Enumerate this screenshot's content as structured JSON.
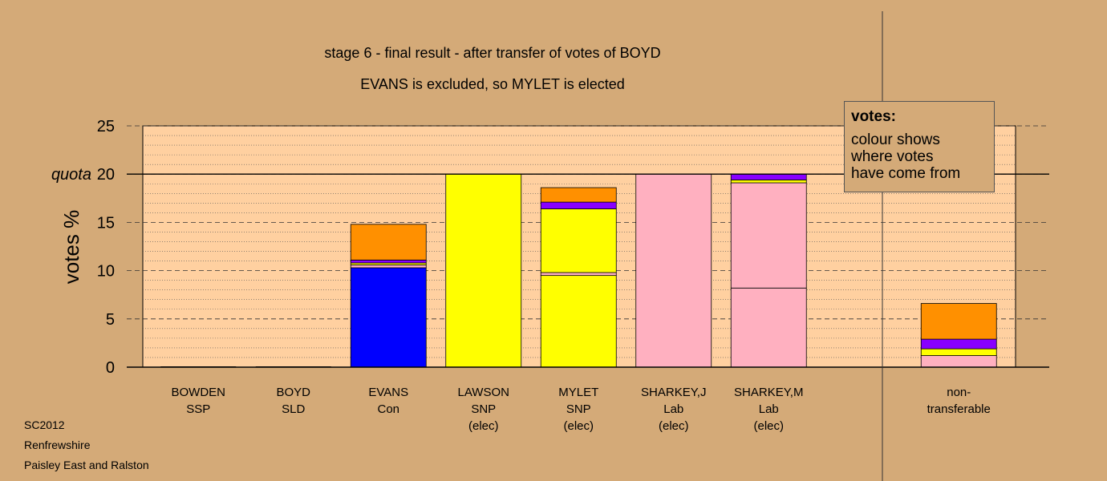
{
  "chart_data": {
    "type": "bar",
    "stacked": true,
    "title": "stage 6 - final result - after transfer of votes of BOYD",
    "subtitle": "EVANS is excluded, so MYLET is elected",
    "ylabel": "votes %",
    "ylim": [
      0,
      25
    ],
    "yticks": [
      "0",
      "5",
      "10",
      "15",
      "20",
      "25"
    ],
    "quota": {
      "label": "quota",
      "value": 20
    },
    "categories": [
      {
        "name": "BOWDEN",
        "party": "SSP",
        "status": ""
      },
      {
        "name": "BOYD",
        "party": "SLD",
        "status": ""
      },
      {
        "name": "EVANS",
        "party": "Con",
        "status": ""
      },
      {
        "name": "LAWSON",
        "party": "SNP",
        "status": "(elec)"
      },
      {
        "name": "MYLET",
        "party": "SNP",
        "status": "(elec)"
      },
      {
        "name": "SHARKEY,J",
        "party": "Lab",
        "status": "(elec)"
      },
      {
        "name": "SHARKEY,M",
        "party": "Lab",
        "status": "(elec)"
      },
      {
        "name": "",
        "party": "",
        "status": ""
      },
      {
        "name": "non-",
        "party": "transferable",
        "status": ""
      }
    ],
    "stacks": [
      [],
      [],
      [
        {
          "value": 10.3,
          "color": "#0000ff"
        },
        {
          "value": 0.3,
          "color": "#ffb0c0"
        },
        {
          "value": 0.2,
          "color": "#ffff00"
        },
        {
          "value": 0.3,
          "color": "#8800ff"
        },
        {
          "value": 3.7,
          "color": "#ff9000"
        }
      ],
      [
        {
          "value": 20.0,
          "color": "#ffff00"
        }
      ],
      [
        {
          "value": 9.5,
          "color": "#ffff00"
        },
        {
          "value": 0.3,
          "color": "#ffb0c0"
        },
        {
          "value": 6.6,
          "color": "#ffff00"
        },
        {
          "value": 0.7,
          "color": "#8800ff"
        },
        {
          "value": 1.5,
          "color": "#ff9000"
        }
      ],
      [
        {
          "value": 20.0,
          "color": "#ffb0c0"
        }
      ],
      [
        {
          "value": 8.2,
          "color": "#ffb0c0"
        },
        {
          "value": 10.9,
          "color": "#ffb0c0"
        },
        {
          "value": 0.3,
          "color": "#ffff00"
        },
        {
          "value": 0.6,
          "color": "#8800ff"
        }
      ],
      [],
      [
        {
          "value": 1.2,
          "color": "#ffb0c0"
        },
        {
          "value": 0.7,
          "color": "#ffff00"
        },
        {
          "value": 1.0,
          "color": "#8800ff"
        },
        {
          "value": 3.7,
          "color": "#ff9000"
        }
      ]
    ],
    "legend": {
      "title": "votes:",
      "lines": [
        "colour shows",
        "where votes",
        "have come from"
      ]
    }
  },
  "footer": {
    "line1": "SC2012",
    "line2": "Renfrewshire",
    "line3": "Paisley East and Ralston"
  },
  "colors": {
    "background": "#d4aa78",
    "plot": "#ffd0a0"
  }
}
